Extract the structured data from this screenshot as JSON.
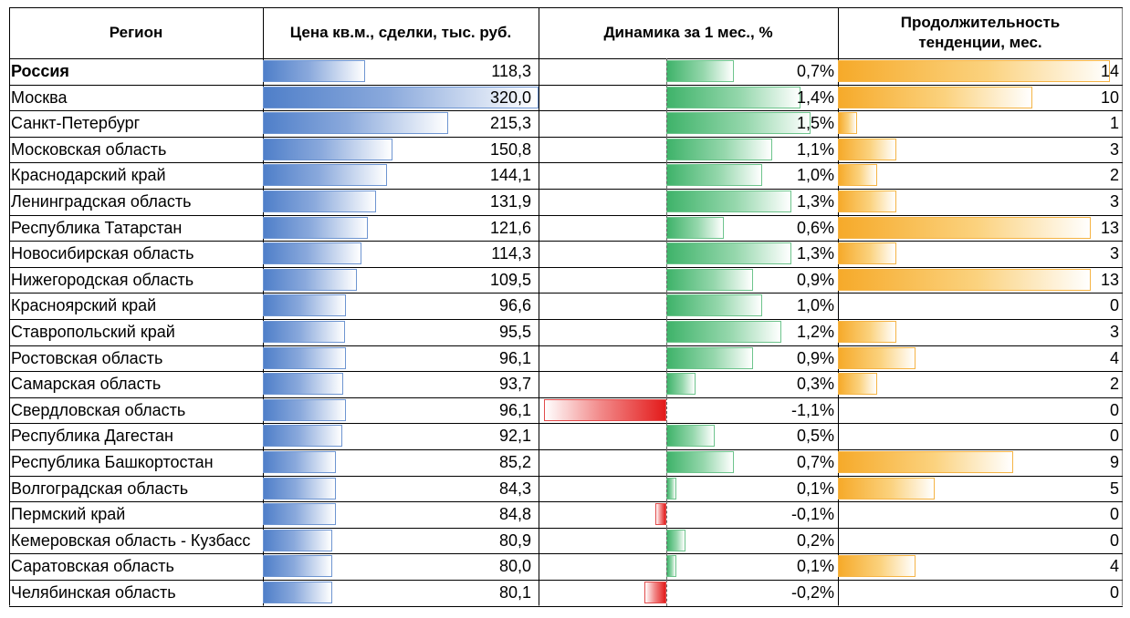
{
  "chart_data": {
    "type": "table",
    "headers": {
      "region": "Регион",
      "price": "Цена кв.м., сделки, тыс. руб.",
      "change": "Динамика за 1 мес., %",
      "duration_line1": "Продолжительность",
      "duration_line2": "тенденции, мес."
    },
    "rows": [
      {
        "region": "Россия",
        "price": 118.3,
        "price_label": "118,3",
        "change": 0.7,
        "change_label": "0,7%",
        "duration": 14,
        "duration_label": "14",
        "bold": true
      },
      {
        "region": "Москва",
        "price": 320.0,
        "price_label": "320,0",
        "change": 1.4,
        "change_label": "1,4%",
        "duration": 10,
        "duration_label": "10"
      },
      {
        "region": "Санкт-Петербург",
        "price": 215.3,
        "price_label": "215,3",
        "change": 1.5,
        "change_label": "1,5%",
        "duration": 1,
        "duration_label": "1"
      },
      {
        "region": "Московская область",
        "price": 150.8,
        "price_label": "150,8",
        "change": 1.1,
        "change_label": "1,1%",
        "duration": 3,
        "duration_label": "3"
      },
      {
        "region": "Краснодарский край",
        "price": 144.1,
        "price_label": "144,1",
        "change": 1.0,
        "change_label": "1,0%",
        "duration": 2,
        "duration_label": "2"
      },
      {
        "region": "Ленинградская область",
        "price": 131.9,
        "price_label": "131,9",
        "change": 1.3,
        "change_label": "1,3%",
        "duration": 3,
        "duration_label": "3"
      },
      {
        "region": "Республика Татарстан",
        "price": 121.6,
        "price_label": "121,6",
        "change": 0.6,
        "change_label": "0,6%",
        "duration": 13,
        "duration_label": "13"
      },
      {
        "region": "Новосибирская область",
        "price": 114.3,
        "price_label": "114,3",
        "change": 1.3,
        "change_label": "1,3%",
        "duration": 3,
        "duration_label": "3"
      },
      {
        "region": "Нижегородская область",
        "price": 109.5,
        "price_label": "109,5",
        "change": 0.9,
        "change_label": "0,9%",
        "duration": 13,
        "duration_label": "13"
      },
      {
        "region": "Красноярский край",
        "price": 96.6,
        "price_label": "96,6",
        "change": 1.0,
        "change_label": "1,0%",
        "duration": 0,
        "duration_label": "0"
      },
      {
        "region": "Ставропольский край",
        "price": 95.5,
        "price_label": "95,5",
        "change": 1.2,
        "change_label": "1,2%",
        "duration": 3,
        "duration_label": "3"
      },
      {
        "region": "Ростовская область",
        "price": 96.1,
        "price_label": "96,1",
        "change": 0.9,
        "change_label": "0,9%",
        "duration": 4,
        "duration_label": "4"
      },
      {
        "region": "Самарская область",
        "price": 93.7,
        "price_label": "93,7",
        "change": 0.3,
        "change_label": "0,3%",
        "duration": 2,
        "duration_label": "2"
      },
      {
        "region": "Свердловская область",
        "price": 96.1,
        "price_label": "96,1",
        "change": -1.1,
        "change_label": "-1,1%",
        "duration": 0,
        "duration_label": "0"
      },
      {
        "region": "Республика Дагестан",
        "price": 92.1,
        "price_label": "92,1",
        "change": 0.5,
        "change_label": "0,5%",
        "duration": 0,
        "duration_label": "0"
      },
      {
        "region": "Республика Башкортостан",
        "price": 85.2,
        "price_label": "85,2",
        "change": 0.7,
        "change_label": "0,7%",
        "duration": 9,
        "duration_label": "9"
      },
      {
        "region": "Волгоградская область",
        "price": 84.3,
        "price_label": "84,3",
        "change": 0.1,
        "change_label": "0,1%",
        "duration": 5,
        "duration_label": "5"
      },
      {
        "region": "Пермский край",
        "price": 84.8,
        "price_label": "84,8",
        "change": -0.1,
        "change_label": "-0,1%",
        "duration": 0,
        "duration_label": "0"
      },
      {
        "region": "Кемеровская область - Кузбасс",
        "price": 80.9,
        "price_label": "80,9",
        "change": 0.2,
        "change_label": "0,2%",
        "duration": 0,
        "duration_label": "0"
      },
      {
        "region": "Саратовская область",
        "price": 80.0,
        "price_label": "80,0",
        "change": 0.1,
        "change_label": "0,1%",
        "duration": 4,
        "duration_label": "4"
      },
      {
        "region": "Челябинская область",
        "price": 80.1,
        "price_label": "80,1",
        "change": -0.2,
        "change_label": "-0,2%",
        "duration": 0,
        "duration_label": "0"
      }
    ],
    "scales": {
      "price_max": 320,
      "change_min": -1.1,
      "change_max": 1.5,
      "duration_max": 14
    },
    "colors": {
      "price_bar": "#4f7fc9",
      "positive_bar": "#3fb36a",
      "negative_bar": "#e31b1b",
      "duration_bar": "#f6aa2a",
      "grid": "#000000"
    }
  }
}
